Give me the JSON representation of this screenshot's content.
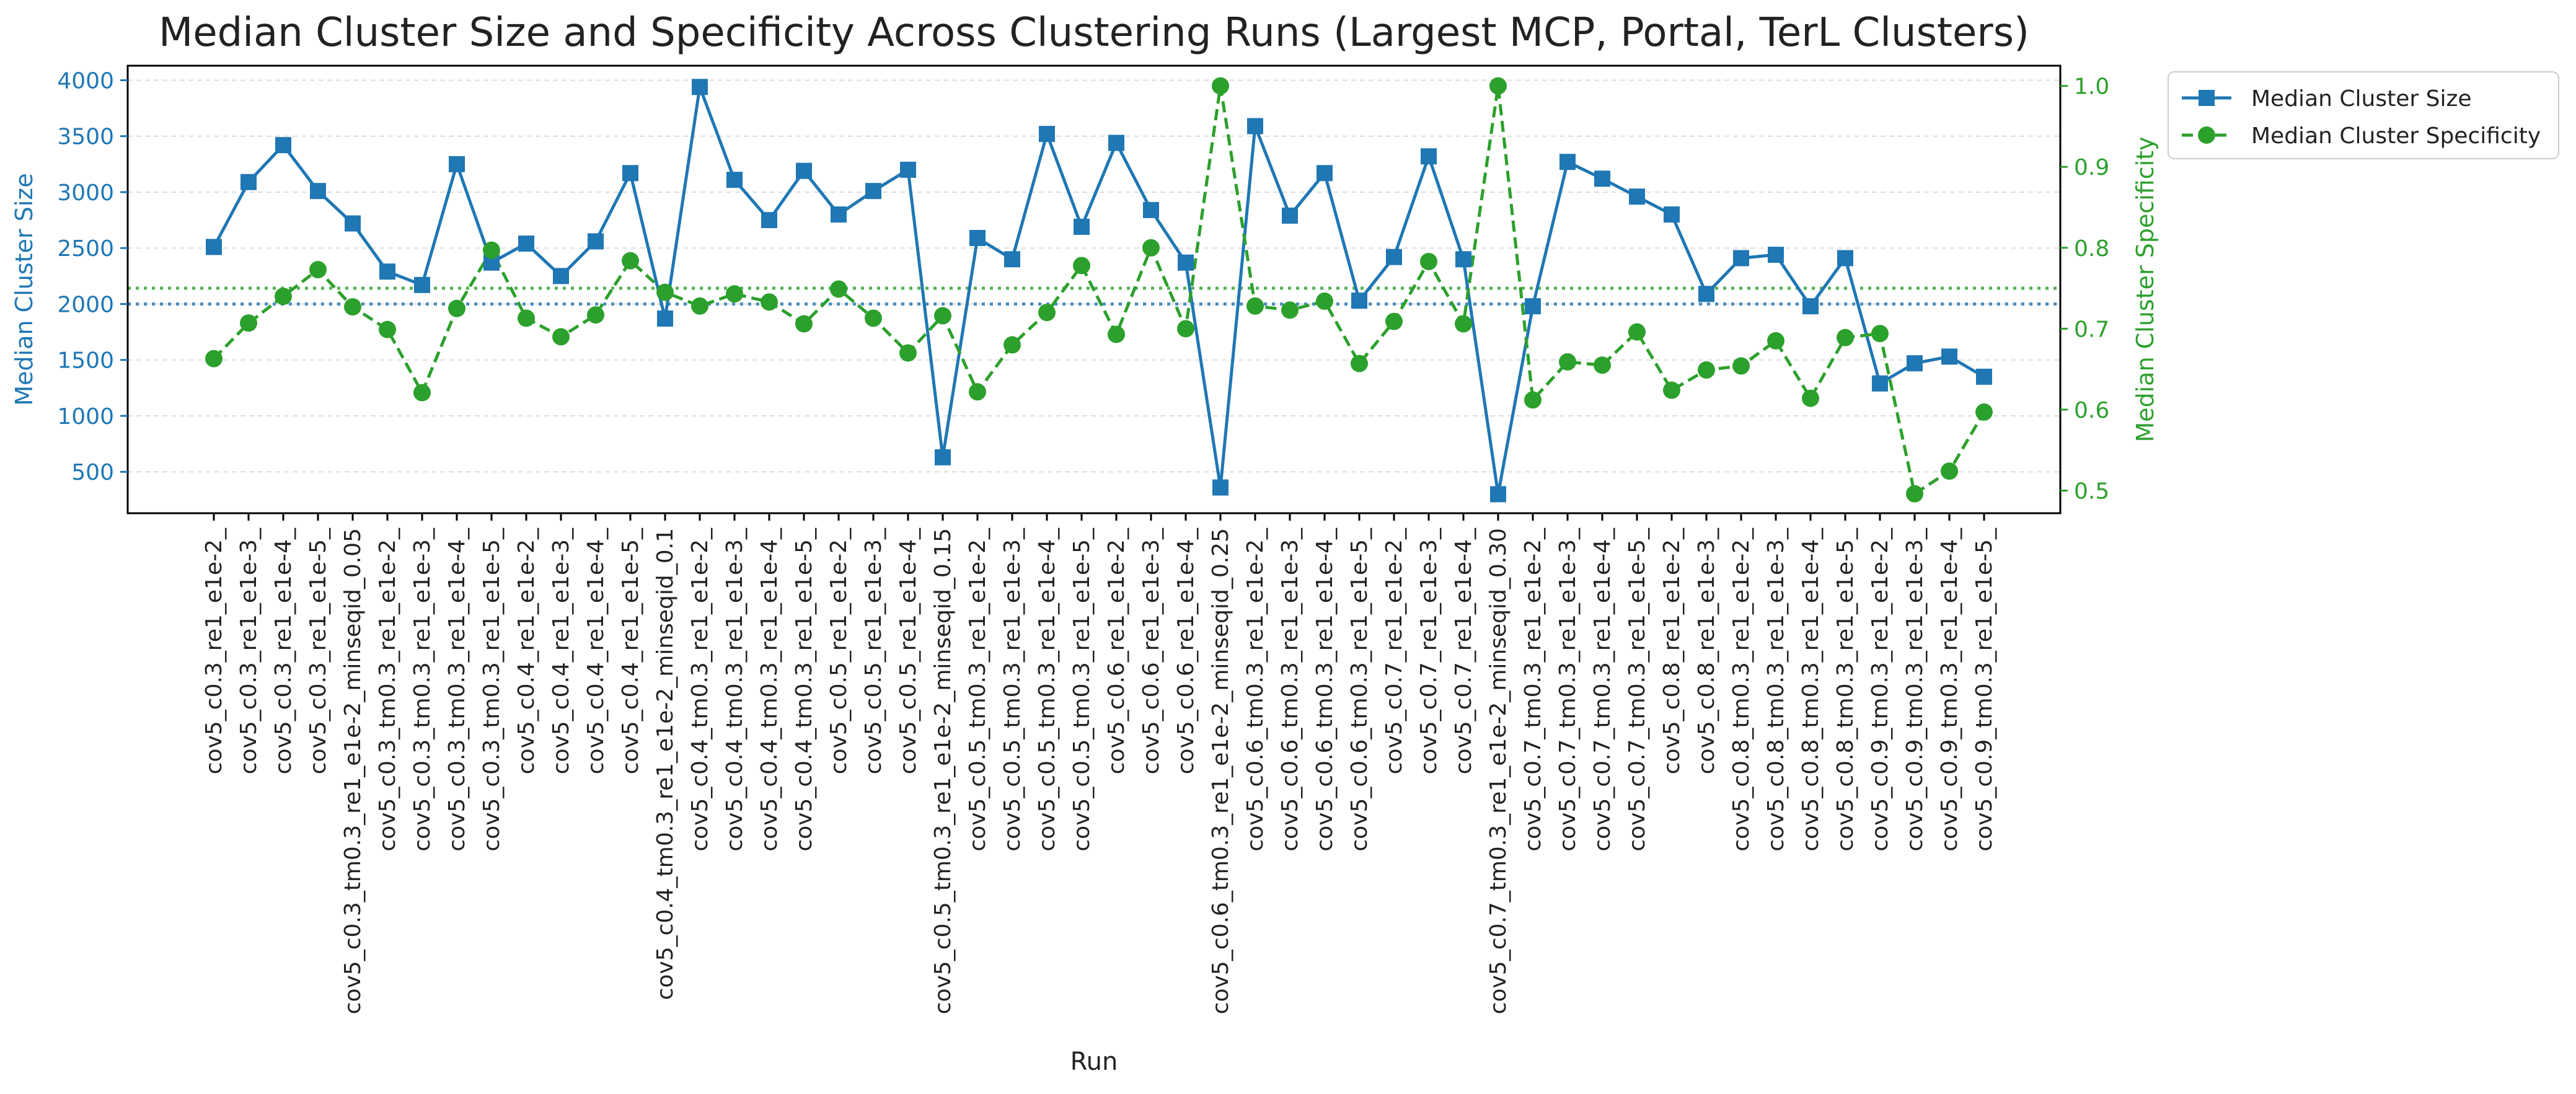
{
  "chart_data": {
    "type": "line",
    "title": "Median Cluster Size and Specificity Across Clustering Runs (Largest MCP, Portal, TerL Clusters)",
    "xlabel": "Run",
    "ylabel_left": "Median Cluster Size",
    "ylabel_right": "Median Cluster Specificity",
    "ylim_left": [
      130,
      4130
    ],
    "ylim_right": [
      0.472,
      1.025
    ],
    "yticks_left": [
      "500",
      "1000",
      "1500",
      "2000",
      "2500",
      "3000",
      "3500",
      "4000"
    ],
    "yticks_right": [
      "0.5",
      "0.6",
      "0.7",
      "0.8",
      "0.9",
      "1.0"
    ],
    "grid": true,
    "legend_position": "outside-top-right",
    "colors": {
      "size": "#1f77b4",
      "specificity": "#2ca02c",
      "axis": "#000000",
      "grid": "#dddddd"
    },
    "reference_lines": {
      "size": 2000,
      "specificity": 0.75
    },
    "categories": [
      "cov5_c0.3_re1_e1e-2_",
      "cov5_c0.3_re1_e1e-3_",
      "cov5_c0.3_re1_e1e-4_",
      "cov5_c0.3_re1_e1e-5_",
      "cov5_c0.3_tm0.3_re1_e1e-2_minseqid_0.05",
      "cov5_c0.3_tm0.3_re1_e1e-2_",
      "cov5_c0.3_tm0.3_re1_e1e-3_",
      "cov5_c0.3_tm0.3_re1_e1e-4_",
      "cov5_c0.3_tm0.3_re1_e1e-5_",
      "cov5_c0.4_re1_e1e-2_",
      "cov5_c0.4_re1_e1e-3_",
      "cov5_c0.4_re1_e1e-4_",
      "cov5_c0.4_re1_e1e-5_",
      "cov5_c0.4_tm0.3_re1_e1e-2_minseqid_0.1",
      "cov5_c0.4_tm0.3_re1_e1e-2_",
      "cov5_c0.4_tm0.3_re1_e1e-3_",
      "cov5_c0.4_tm0.3_re1_e1e-4_",
      "cov5_c0.4_tm0.3_re1_e1e-5_",
      "cov5_c0.5_re1_e1e-2_",
      "cov5_c0.5_re1_e1e-3_",
      "cov5_c0.5_re1_e1e-4_",
      "cov5_c0.5_tm0.3_re1_e1e-2_minseqid_0.15",
      "cov5_c0.5_tm0.3_re1_e1e-2_",
      "cov5_c0.5_tm0.3_re1_e1e-3_",
      "cov5_c0.5_tm0.3_re1_e1e-4_",
      "cov5_c0.5_tm0.3_re1_e1e-5_",
      "cov5_c0.6_re1_e1e-2_",
      "cov5_c0.6_re1_e1e-3_",
      "cov5_c0.6_re1_e1e-4_",
      "cov5_c0.6_tm0.3_re1_e1e-2_minseqid_0.25",
      "cov5_c0.6_tm0.3_re1_e1e-2_",
      "cov5_c0.6_tm0.3_re1_e1e-3_",
      "cov5_c0.6_tm0.3_re1_e1e-4_",
      "cov5_c0.6_tm0.3_re1_e1e-5_",
      "cov5_c0.7_re1_e1e-2_",
      "cov5_c0.7_re1_e1e-3_",
      "cov5_c0.7_re1_e1e-4_",
      "cov5_c0.7_tm0.3_re1_e1e-2_minseqid_0.30",
      "cov5_c0.7_tm0.3_re1_e1e-2_",
      "cov5_c0.7_tm0.3_re1_e1e-3_",
      "cov5_c0.7_tm0.3_re1_e1e-4_",
      "cov5_c0.7_tm0.3_re1_e1e-5_",
      "cov5_c0.8_re1_e1e-2_",
      "cov5_c0.8_re1_e1e-3_",
      "cov5_c0.8_tm0.3_re1_e1e-2_",
      "cov5_c0.8_tm0.3_re1_e1e-3_",
      "cov5_c0.8_tm0.3_re1_e1e-4_",
      "cov5_c0.8_tm0.3_re1_e1e-5_",
      "cov5_c0.9_tm0.3_re1_e1e-2_",
      "cov5_c0.9_tm0.3_re1_e1e-3_",
      "cov5_c0.9_tm0.3_re1_e1e-4_",
      "cov5_c0.9_tm0.3_re1_e1e-5_"
    ],
    "series": [
      {
        "name": "Median Cluster Size",
        "axis": "left",
        "marker": "square",
        "line_style": "solid",
        "values": [
          2510,
          3090,
          3420,
          3010,
          2720,
          2290,
          2170,
          3250,
          2370,
          2540,
          2250,
          2560,
          3170,
          1870,
          3940,
          3110,
          2750,
          3190,
          2800,
          3010,
          3200,
          630,
          2590,
          2400,
          3520,
          2690,
          3440,
          2840,
          2370,
          360,
          3590,
          2790,
          3170,
          2030,
          2420,
          3320,
          2400,
          300,
          1980,
          3270,
          3120,
          2960,
          2800,
          2090,
          2410,
          2440,
          1980,
          2410,
          1290,
          1470,
          1530,
          1350
        ]
      },
      {
        "name": "Median Cluster Specificity",
        "axis": "right",
        "marker": "circle",
        "line_style": "dashed",
        "values": [
          0.663,
          0.707,
          0.74,
          0.773,
          0.727,
          0.699,
          0.621,
          0.725,
          0.797,
          0.713,
          0.69,
          0.717,
          0.784,
          0.745,
          0.728,
          0.743,
          0.733,
          0.706,
          0.749,
          0.713,
          0.67,
          0.716,
          0.622,
          0.68,
          0.72,
          0.778,
          0.693,
          0.8,
          0.7,
          1.0,
          0.728,
          0.723,
          0.734,
          0.657,
          0.709,
          0.783,
          0.706,
          1.0,
          0.612,
          0.659,
          0.655,
          0.696,
          0.624,
          0.649,
          0.654,
          0.685,
          0.614,
          0.689,
          0.694,
          0.496,
          0.524,
          0.597
        ]
      }
    ]
  }
}
